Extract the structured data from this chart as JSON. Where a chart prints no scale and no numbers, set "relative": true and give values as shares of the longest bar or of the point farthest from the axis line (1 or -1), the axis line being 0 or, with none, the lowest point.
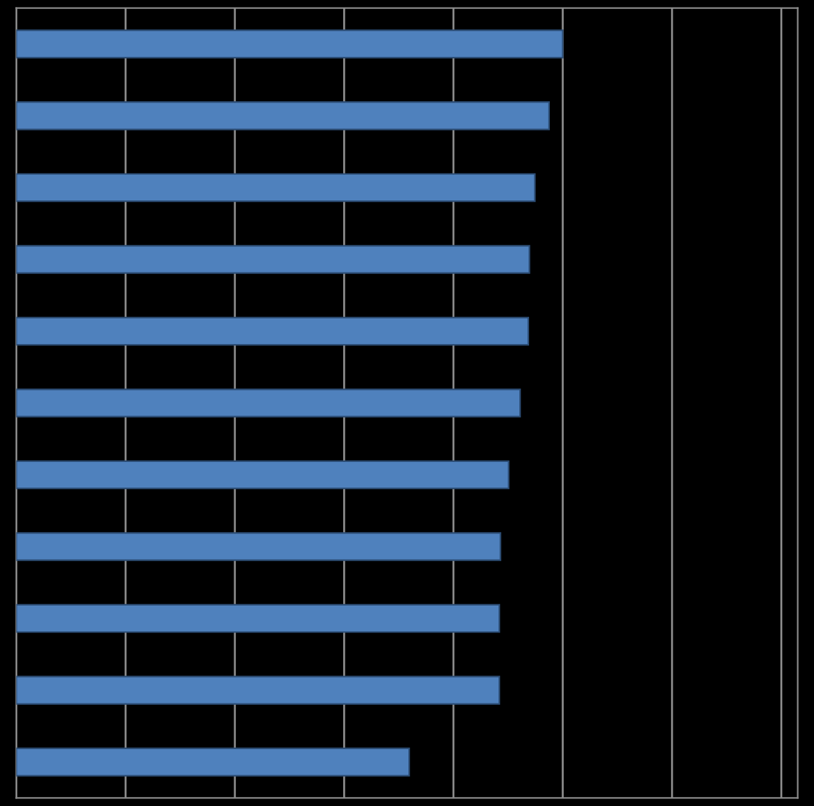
{
  "chart_data": {
    "type": "bar",
    "orientation": "horizontal",
    "relative": true,
    "grid": "x",
    "categories": [
      null,
      null,
      null,
      null,
      null,
      null,
      null,
      null,
      null,
      null,
      null
    ],
    "values": [
      1,
      0.975,
      0.949,
      0.939,
      0.937,
      0.922,
      0.901,
      0.886,
      0.884,
      0.884,
      0.719
    ],
    "color": "#4f81bd"
  }
}
